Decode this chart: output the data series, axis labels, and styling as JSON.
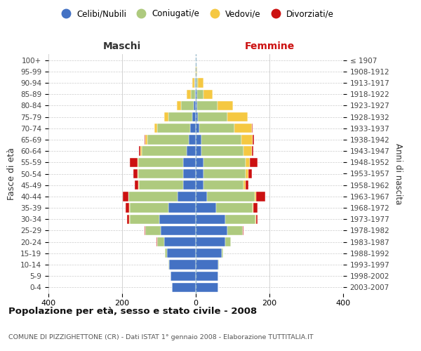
{
  "age_groups": [
    "100+",
    "95-99",
    "90-94",
    "85-89",
    "80-84",
    "75-79",
    "70-74",
    "65-69",
    "60-64",
    "55-59",
    "50-54",
    "45-49",
    "40-44",
    "35-39",
    "30-34",
    "25-29",
    "20-24",
    "15-19",
    "10-14",
    "5-9",
    "0-4"
  ],
  "birth_years": [
    "≤ 1907",
    "1908-1912",
    "1913-1917",
    "1918-1922",
    "1923-1927",
    "1928-1932",
    "1933-1937",
    "1938-1942",
    "1943-1947",
    "1948-1952",
    "1953-1957",
    "1958-1962",
    "1963-1967",
    "1968-1972",
    "1973-1977",
    "1978-1982",
    "1983-1987",
    "1988-1992",
    "1993-1997",
    "1998-2002",
    "2003-2007"
  ],
  "male_celibi": [
    0,
    0,
    1,
    2,
    5,
    10,
    15,
    20,
    25,
    35,
    35,
    35,
    50,
    75,
    100,
    95,
    85,
    78,
    72,
    68,
    65
  ],
  "male_coniugati": [
    0,
    0,
    3,
    12,
    35,
    65,
    90,
    112,
    122,
    122,
    122,
    120,
    132,
    105,
    80,
    42,
    20,
    5,
    2,
    0,
    0
  ],
  "male_vedovi": [
    0,
    1,
    5,
    10,
    12,
    10,
    8,
    5,
    3,
    2,
    2,
    2,
    1,
    1,
    1,
    1,
    0,
    0,
    0,
    0,
    0
  ],
  "male_divorziati": [
    0,
    0,
    0,
    0,
    0,
    0,
    0,
    2,
    5,
    20,
    10,
    8,
    15,
    10,
    5,
    2,
    1,
    0,
    0,
    0,
    0
  ],
  "female_nubili": [
    0,
    0,
    1,
    3,
    4,
    6,
    10,
    15,
    15,
    20,
    20,
    20,
    30,
    55,
    80,
    85,
    80,
    70,
    60,
    60,
    60
  ],
  "female_coniugate": [
    0,
    1,
    5,
    18,
    55,
    80,
    95,
    108,
    115,
    115,
    115,
    110,
    130,
    100,
    82,
    42,
    15,
    5,
    2,
    0,
    0
  ],
  "female_vedove": [
    0,
    2,
    15,
    25,
    42,
    55,
    48,
    32,
    22,
    12,
    8,
    5,
    3,
    2,
    1,
    1,
    0,
    0,
    0,
    0,
    0
  ],
  "female_divorziate": [
    0,
    0,
    0,
    0,
    0,
    0,
    2,
    3,
    5,
    20,
    10,
    8,
    25,
    10,
    5,
    2,
    1,
    0,
    0,
    0,
    0
  ],
  "color_celibi": "#4472C4",
  "color_coniugati": "#AECA7E",
  "color_vedovi": "#F5C842",
  "color_divorziati": "#CC1111",
  "xlim": 400,
  "title": "Popolazione per età, sesso e stato civile - 2008",
  "subtitle": "COMUNE DI PIZZIGHETTONE (CR) - Dati ISTAT 1° gennaio 2008 - Elaborazione TUTTITALIA.IT",
  "label_maschi": "Maschi",
  "label_femmine": "Femmine",
  "ylabel_left": "Fasce di età",
  "ylabel_right": "Anni di nascita",
  "legend_labels": [
    "Celibi/Nubili",
    "Coniugati/e",
    "Vedovi/e",
    "Divorziati/e"
  ],
  "bg_color": "#ffffff",
  "grid_color": "#cccccc"
}
